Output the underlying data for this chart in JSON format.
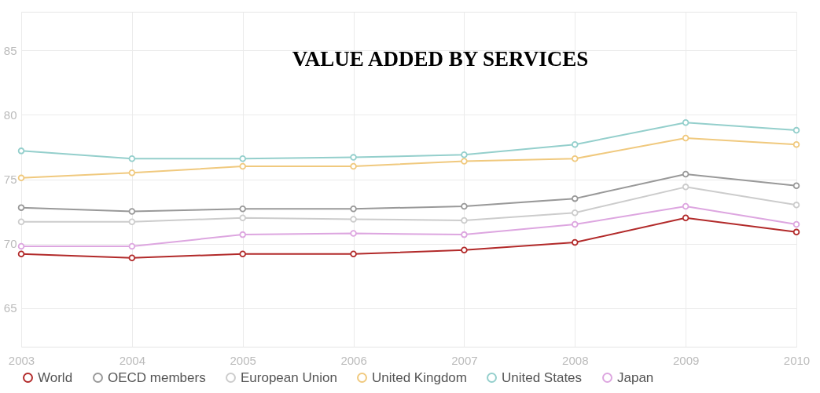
{
  "chart_data": {
    "type": "line",
    "title": "VALUE ADDED BY SERVICES",
    "x": [
      2003,
      2004,
      2005,
      2006,
      2007,
      2008,
      2009,
      2010
    ],
    "xlim": [
      2003,
      2010
    ],
    "xticks": [
      2003,
      2004,
      2005,
      2006,
      2007,
      2008,
      2009,
      2010
    ],
    "ylim": [
      62,
      88
    ],
    "yticks": [
      65,
      70,
      75,
      80,
      85
    ],
    "grid": true,
    "legend": "bottom",
    "marker": "circle",
    "line_style": "solid",
    "series": [
      {
        "name": "World",
        "color": "#b22a2a",
        "values": [
          69.2,
          68.9,
          69.2,
          69.2,
          69.5,
          70.1,
          72.0,
          70.9
        ]
      },
      {
        "name": "OECD members",
        "color": "#999999",
        "values": [
          72.8,
          72.5,
          72.7,
          72.7,
          72.9,
          73.5,
          75.4,
          74.5
        ]
      },
      {
        "name": "European Union",
        "color": "#cccccc",
        "values": [
          71.7,
          71.7,
          72.0,
          71.9,
          71.8,
          72.4,
          74.4,
          73.0
        ]
      },
      {
        "name": "United Kingdom",
        "color": "#f0c97e",
        "values": [
          75.1,
          75.5,
          76.0,
          76.0,
          76.4,
          76.6,
          78.2,
          77.7
        ]
      },
      {
        "name": "United States",
        "color": "#94cfcc",
        "values": [
          77.2,
          76.6,
          76.6,
          76.7,
          76.9,
          77.7,
          79.4,
          78.8
        ]
      },
      {
        "name": "Japan",
        "color": "#dda6e0",
        "values": [
          69.8,
          69.8,
          70.7,
          70.8,
          70.7,
          71.5,
          72.9,
          71.5
        ]
      }
    ]
  }
}
